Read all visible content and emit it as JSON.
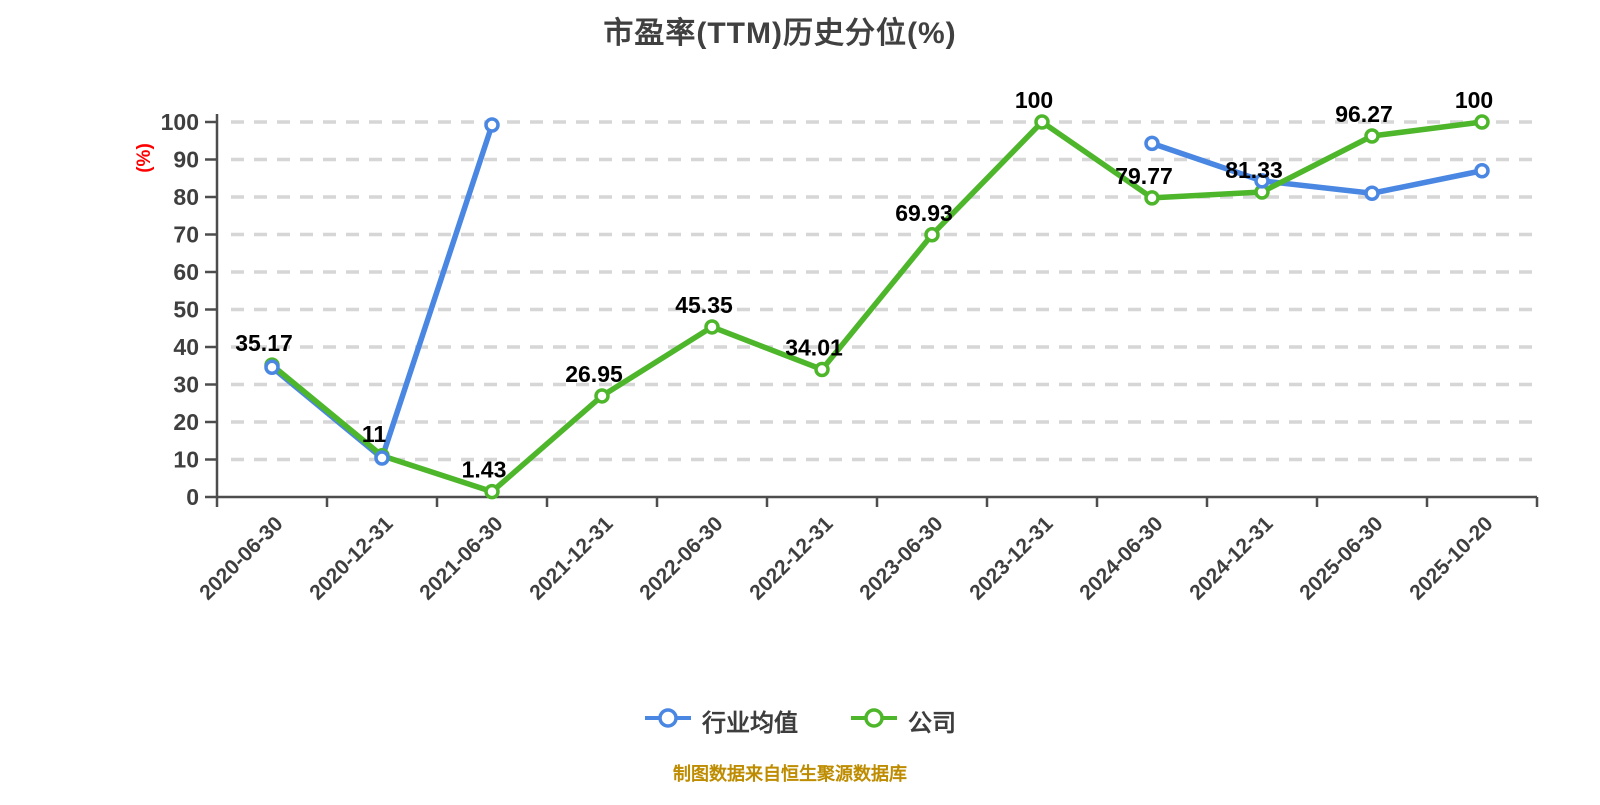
{
  "title": "市盈率(TTM)历史分位(%)",
  "footer": "制图数据来自恒生聚源数据库",
  "colors": {
    "title_text": "#404040",
    "axis_line": "#4D4D4D",
    "axis_tick_label": "#3F3F3F",
    "grid_line": "#D6D6D6",
    "y_axis_name": "#FF0000",
    "data_label": "#000000",
    "footer_text": "#BE8C00",
    "marker_fill": "#FFFFFF"
  },
  "chart_data": {
    "type": "line",
    "title": "市盈率(TTM)历史分位(%)",
    "y_axis_name": "(%)",
    "ylim": [
      0,
      100
    ],
    "y_tick_step": 10,
    "y_tick_labels": [
      "0",
      "10",
      "20",
      "30",
      "40",
      "50",
      "60",
      "70",
      "80",
      "90",
      "100"
    ],
    "grid": "horizontal-dashed",
    "legend_position": "bottom",
    "categories": [
      "2020-06-30",
      "2020-12-31",
      "2021-06-30",
      "2021-12-31",
      "2022-06-30",
      "2022-12-31",
      "2023-06-30",
      "2023-12-31",
      "2024-06-30",
      "2024-12-31",
      "2025-06-30",
      "2025-10-20"
    ],
    "series": [
      {
        "name": "行业均值",
        "color": "#4A87E2",
        "marker": "circle-white-fill",
        "labeled": false,
        "values": [
          34.6,
          10.4,
          99.2,
          null,
          null,
          null,
          null,
          null,
          94.3,
          84.3,
          81.0,
          87.0
        ]
      },
      {
        "name": "公司",
        "color": "#4EB62B",
        "marker": "circle-white-fill",
        "labeled": true,
        "values": [
          35.17,
          11,
          1.43,
          26.95,
          45.35,
          34.01,
          69.93,
          100,
          79.77,
          81.33,
          96.27,
          100
        ]
      }
    ]
  }
}
